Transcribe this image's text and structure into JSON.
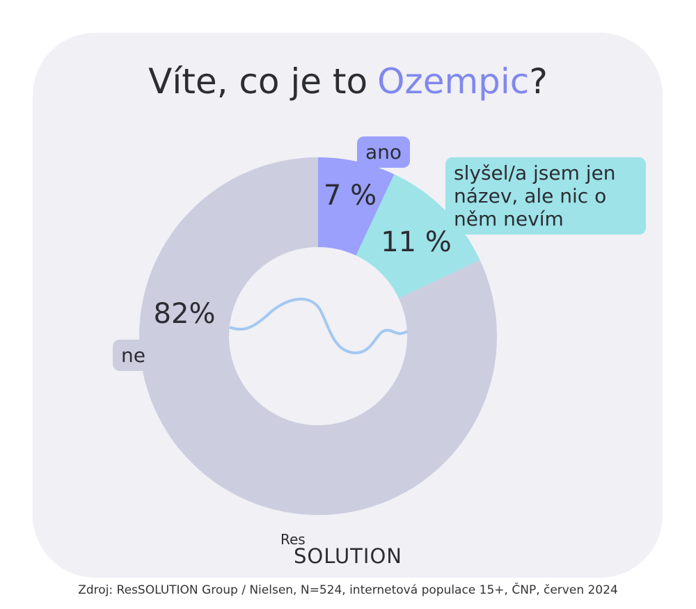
{
  "chart_data": {
    "type": "donut",
    "title": [
      "Víte, co je to",
      "Ozempic",
      "?"
    ],
    "categories": [
      "ano",
      "slyšel/a jsem jen název, ale nic o něm nevím",
      "ne"
    ],
    "values": [
      7,
      11,
      82
    ],
    "value_labels": [
      "7 %",
      "11 %",
      "82%"
    ],
    "colors": [
      "#9aa0fb",
      "#9de3e8",
      "#cdcde0"
    ],
    "title_highlight_color": "#8088ee"
  },
  "logo": {
    "line1": "Res",
    "line2": "SOLUTION"
  },
  "source": "Zdroj: ResSOLUTION Group / Nielsen, N=524, internetová populace 15+, ČNP, červen 2024"
}
